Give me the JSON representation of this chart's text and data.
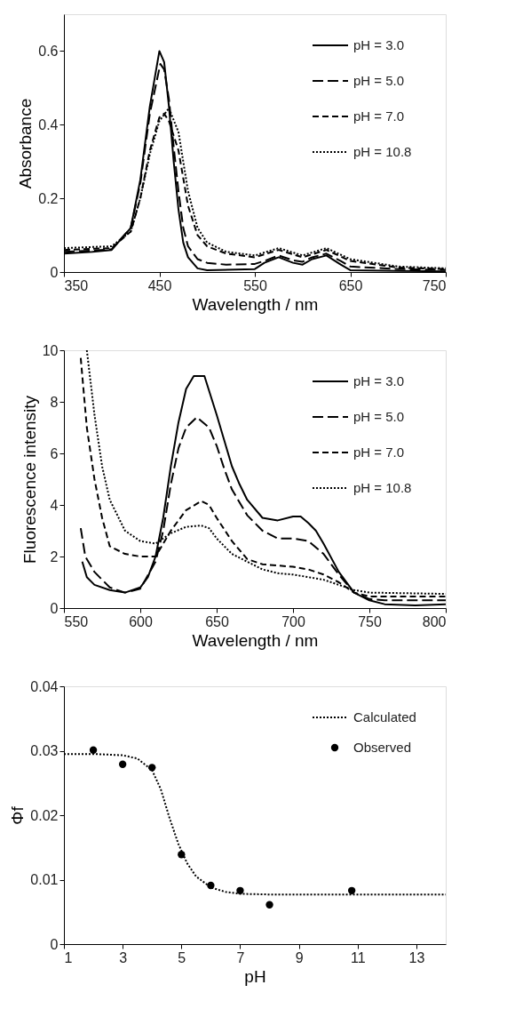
{
  "chart_data": [
    {
      "type": "line",
      "xlabel": "Wavelength / nm",
      "ylabel": "Absorbance",
      "xlim": [
        350,
        750
      ],
      "xticks": [
        350,
        450,
        550,
        650,
        750
      ],
      "ylim": [
        0,
        0.7
      ],
      "yticks": [
        0,
        0.2,
        0.4,
        0.6
      ],
      "grid": false,
      "legend": "top right",
      "series": [
        {
          "name": "pH = 3.0",
          "color": "#000000",
          "line_style": "solid",
          "x": [
            350,
            380,
            400,
            420,
            430,
            440,
            450,
            455,
            460,
            465,
            470,
            475,
            480,
            490,
            500,
            550,
            560,
            575,
            590,
            600,
            610,
            625,
            640,
            650,
            700,
            750
          ],
          "values": [
            0.05,
            0.055,
            0.06,
            0.12,
            0.25,
            0.45,
            0.6,
            0.57,
            0.45,
            0.3,
            0.17,
            0.08,
            0.04,
            0.01,
            0.005,
            0.008,
            0.025,
            0.04,
            0.025,
            0.02,
            0.035,
            0.045,
            0.02,
            0.005,
            0.003,
            0.002
          ]
        },
        {
          "name": "pH = 5.0",
          "color": "#000000",
          "line_style": "dashed",
          "x": [
            350,
            380,
            400,
            420,
            430,
            440,
            451,
            455,
            460,
            465,
            470,
            475,
            480,
            490,
            500,
            520,
            550,
            560,
            575,
            590,
            600,
            610,
            625,
            640,
            650,
            700,
            750
          ],
          "values": [
            0.055,
            0.058,
            0.062,
            0.12,
            0.24,
            0.43,
            0.565,
            0.55,
            0.47,
            0.34,
            0.22,
            0.12,
            0.07,
            0.035,
            0.025,
            0.02,
            0.022,
            0.03,
            0.045,
            0.032,
            0.028,
            0.04,
            0.05,
            0.03,
            0.015,
            0.008,
            0.006
          ]
        },
        {
          "name": "pH = 7.0",
          "color": "#000000",
          "line_style": "dashed",
          "x": [
            350,
            400,
            420,
            430,
            440,
            450,
            455,
            460,
            470,
            480,
            490,
            500,
            520,
            550,
            575,
            600,
            625,
            650,
            700,
            750
          ],
          "values": [
            0.06,
            0.065,
            0.11,
            0.2,
            0.33,
            0.42,
            0.43,
            0.41,
            0.33,
            0.18,
            0.1,
            0.07,
            0.05,
            0.04,
            0.06,
            0.04,
            0.06,
            0.03,
            0.012,
            0.008
          ]
        },
        {
          "name": "pH = 10.8",
          "color": "#000000",
          "line_style": "dotted",
          "x": [
            350,
            400,
            420,
            430,
            440,
            450,
            460,
            470,
            480,
            490,
            500,
            520,
            550,
            575,
            600,
            625,
            650,
            700,
            750
          ],
          "values": [
            0.065,
            0.07,
            0.11,
            0.2,
            0.32,
            0.41,
            0.445,
            0.38,
            0.22,
            0.12,
            0.08,
            0.055,
            0.045,
            0.065,
            0.045,
            0.065,
            0.035,
            0.015,
            0.01
          ]
        }
      ]
    },
    {
      "type": "line",
      "xlabel": "Wavelength / nm",
      "ylabel": "Fluorescence intensity",
      "xlim": [
        550,
        800
      ],
      "xticks": [
        550,
        600,
        650,
        700,
        750,
        800
      ],
      "ylim": [
        0,
        10
      ],
      "yticks": [
        0,
        2,
        4,
        6,
        8,
        10
      ],
      "grid": false,
      "legend": "top right",
      "series": [
        {
          "name": "pH = 3.0",
          "color": "#000000",
          "line_style": "solid",
          "x": [
            562,
            565,
            570,
            580,
            590,
            600,
            605,
            610,
            615,
            620,
            625,
            630,
            635,
            642,
            650,
            655,
            660,
            665,
            670,
            680,
            690,
            700,
            705,
            710,
            715,
            720,
            730,
            740,
            750,
            760,
            780,
            800
          ],
          "values": [
            1.8,
            1.2,
            0.9,
            0.7,
            0.6,
            0.8,
            1.2,
            2.0,
            3.5,
            5.5,
            7.2,
            8.5,
            9.0,
            9.0,
            7.5,
            6.5,
            5.5,
            4.8,
            4.2,
            3.5,
            3.4,
            3.55,
            3.55,
            3.3,
            3.0,
            2.5,
            1.4,
            0.6,
            0.3,
            0.15,
            0.1,
            0.15
          ]
        },
        {
          "name": "pH = 5.0",
          "color": "#000000",
          "line_style": "dashed",
          "x": [
            561,
            564,
            570,
            580,
            590,
            600,
            610,
            615,
            620,
            625,
            630,
            637,
            645,
            650,
            655,
            660,
            670,
            680,
            690,
            700,
            710,
            720,
            730,
            740,
            750,
            760,
            780,
            800
          ],
          "values": [
            3.1,
            2.0,
            1.4,
            0.8,
            0.6,
            0.75,
            1.8,
            3.0,
            4.8,
            6.2,
            7.0,
            7.4,
            7.0,
            6.3,
            5.4,
            4.6,
            3.6,
            3.0,
            2.7,
            2.7,
            2.6,
            2.1,
            1.3,
            0.6,
            0.35,
            0.3,
            0.3,
            0.3
          ]
        },
        {
          "name": "pH = 7.0",
          "color": "#000000",
          "line_style": "dashed",
          "x": [
            561,
            565,
            570,
            575,
            580,
            590,
            600,
            610,
            615,
            620,
            630,
            640,
            645,
            650,
            660,
            670,
            680,
            690,
            700,
            710,
            720,
            730,
            740,
            750,
            800
          ],
          "values": [
            9.7,
            7.0,
            5.0,
            3.5,
            2.4,
            2.1,
            2.0,
            2.0,
            2.5,
            3.0,
            3.8,
            4.15,
            4.0,
            3.5,
            2.6,
            1.9,
            1.7,
            1.65,
            1.6,
            1.5,
            1.3,
            1.0,
            0.6,
            0.45,
            0.45
          ]
        },
        {
          "name": "pH = 10.8",
          "color": "#000000",
          "line_style": "dotted",
          "x": [
            565,
            570,
            575,
            580,
            590,
            600,
            610,
            620,
            630,
            640,
            645,
            650,
            660,
            670,
            680,
            690,
            700,
            710,
            720,
            730,
            740,
            750,
            800
          ],
          "values": [
            10,
            7.5,
            5.5,
            4.2,
            3.0,
            2.6,
            2.5,
            2.9,
            3.15,
            3.2,
            3.1,
            2.7,
            2.1,
            1.8,
            1.5,
            1.35,
            1.3,
            1.2,
            1.1,
            0.9,
            0.7,
            0.6,
            0.55
          ]
        }
      ]
    },
    {
      "type": "scatter",
      "xlabel": "pH",
      "ylabel": "Φf",
      "xlim": [
        1,
        14
      ],
      "xticks": [
        1,
        3,
        5,
        7,
        9,
        11,
        13
      ],
      "ylim": [
        0,
        0.04
      ],
      "yticks": [
        0,
        0.01,
        0.02,
        0.03,
        0.04
      ],
      "grid": false,
      "legend": "top right",
      "series": [
        {
          "name": "Calculated",
          "type": "line",
          "color": "#000000",
          "line_style": "dotted",
          "marker": "none",
          "x": [
            1,
            2,
            3,
            3.5,
            4,
            4.3,
            4.6,
            4.9,
            5.2,
            5.5,
            6,
            6.5,
            7,
            8,
            14
          ],
          "values": [
            0.0295,
            0.0295,
            0.0293,
            0.0288,
            0.027,
            0.024,
            0.0195,
            0.0155,
            0.0125,
            0.0105,
            0.0088,
            0.0081,
            0.0078,
            0.0077,
            0.0077
          ]
        },
        {
          "name": "Observed",
          "type": "scatter",
          "color": "#000000",
          "marker": "circle",
          "x": [
            2,
            3,
            4,
            5,
            6,
            7,
            8,
            10.8
          ],
          "values": [
            0.0301,
            0.0279,
            0.0274,
            0.0139,
            0.0091,
            0.0083,
            0.0061,
            0.0083
          ]
        }
      ]
    }
  ]
}
